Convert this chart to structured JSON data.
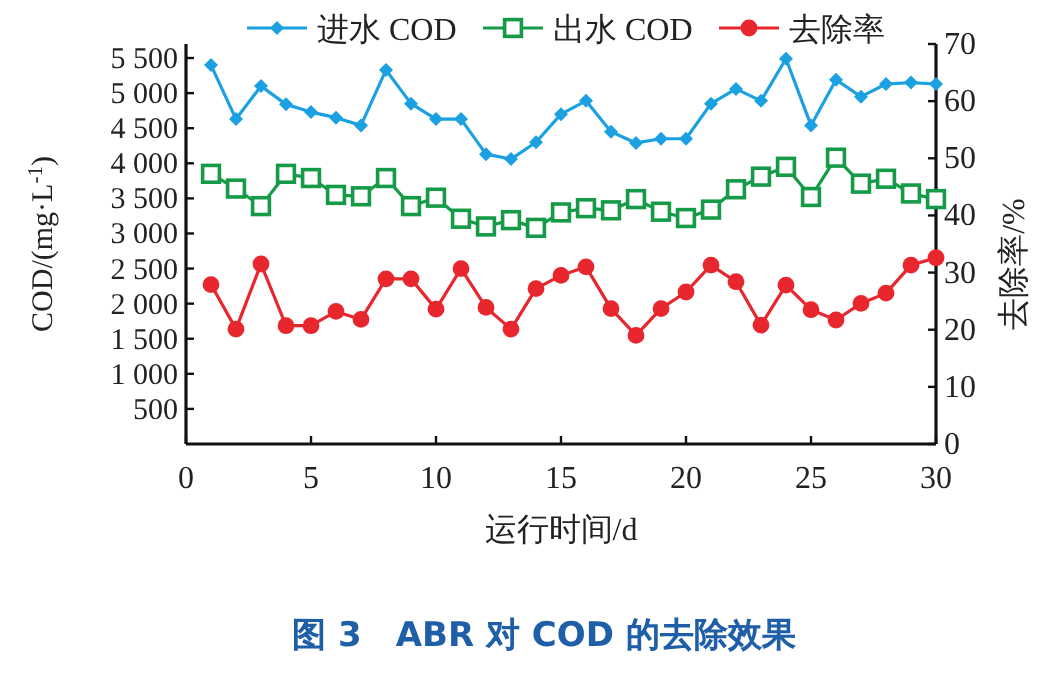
{
  "chart_data": {
    "type": "line",
    "title": "图 3　ABR 对 COD 的去除效果",
    "xlabel": "运行时间/d",
    "ylabel": "COD/(mg·L$^{-1}$)",
    "y2label": "去除率/%",
    "x": [
      1,
      2,
      3,
      4,
      5,
      6,
      7,
      8,
      9,
      10,
      11,
      12,
      13,
      14,
      15,
      16,
      17,
      18,
      19,
      20,
      21,
      22,
      23,
      24,
      25,
      26,
      27,
      28,
      29,
      30
    ],
    "xlim": [
      0,
      30
    ],
    "xticks": [
      0,
      5,
      10,
      15,
      20,
      25,
      30
    ],
    "ylim": [
      0,
      5700
    ],
    "yticks": [
      {
        "value": 500,
        "label": "500"
      },
      {
        "value": 1000,
        "label": "1 000"
      },
      {
        "value": 1500,
        "label": "1 500"
      },
      {
        "value": 2000,
        "label": "2 000"
      },
      {
        "value": 2500,
        "label": "2 500"
      },
      {
        "value": 3000,
        "label": "3 000"
      },
      {
        "value": 3500,
        "label": "3 500"
      },
      {
        "value": 4000,
        "label": "4 000"
      },
      {
        "value": 4500,
        "label": "4 500"
      },
      {
        "value": 5000,
        "label": "5 000"
      },
      {
        "value": 5500,
        "label": "5 500"
      }
    ],
    "y2lim": [
      0,
      70
    ],
    "y2ticks": [
      0,
      10,
      20,
      30,
      40,
      50,
      60,
      70
    ],
    "legend": "top",
    "series": [
      {
        "name": "进水 COD",
        "color": "#1ba1e2",
        "marker": "diamond",
        "values": [
          5400,
          4630,
          5100,
          4840,
          4730,
          4650,
          4540,
          5330,
          4850,
          4630,
          4630,
          4130,
          4060,
          4300,
          4700,
          4890,
          4450,
          4290,
          4350,
          4350,
          4850,
          5060,
          4890,
          5490,
          4540,
          5190,
          4950,
          5130,
          5150,
          5130
        ]
      },
      {
        "name": "出水 COD",
        "color": "#159a48",
        "marker": "square",
        "values": [
          3850,
          3640,
          3390,
          3850,
          3790,
          3550,
          3530,
          3790,
          3390,
          3510,
          3210,
          3100,
          3190,
          3080,
          3300,
          3360,
          3330,
          3490,
          3310,
          3220,
          3340,
          3630,
          3810,
          3950,
          3520,
          4080,
          3710,
          3780,
          3570,
          3490
        ]
      },
      {
        "name": "去除率",
        "color": "#e8262d",
        "marker": "circle",
        "axis": "y2",
        "values": [
          27.9,
          20.1,
          31.5,
          20.7,
          20.7,
          23.2,
          21.8,
          28.9,
          28.9,
          23.6,
          30.7,
          23.9,
          20.1,
          27.2,
          29.5,
          31.0,
          23.7,
          19.0,
          23.7,
          26.6,
          31.3,
          28.4,
          20.8,
          27.8,
          23.5,
          21.7,
          24.6,
          26.4,
          31.3,
          32.6
        ]
      }
    ]
  }
}
